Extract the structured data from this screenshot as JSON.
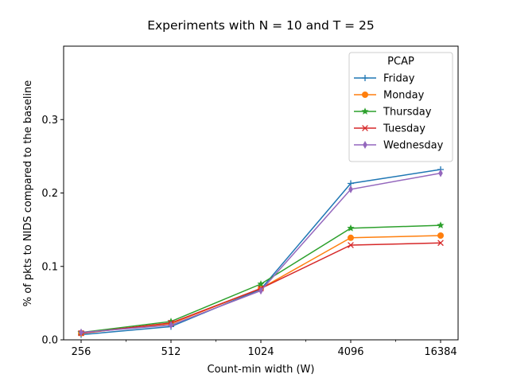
{
  "chart_data": {
    "type": "line",
    "title": "Experiments with N = 10 and T = 25",
    "xlabel": "Count-min width (W)",
    "ylabel": "% of pkts to NIDS compared to the baseline",
    "categories": [
      "256",
      "512",
      "1024",
      "4096",
      "16384"
    ],
    "x_scale": "log2",
    "ylim": [
      0,
      0.4
    ],
    "y_ticks": [
      "0.0",
      "0.1",
      "0.2",
      "0.3"
    ],
    "grid": false,
    "legend": {
      "title": "PCAP",
      "placement": "top-right"
    },
    "series": [
      {
        "name": "Friday",
        "color": "#1f77b4",
        "marker": "plus",
        "values": [
          0.007,
          0.018,
          0.069,
          0.213,
          0.232
        ]
      },
      {
        "name": "Monday",
        "color": "#ff7f0e",
        "marker": "circle",
        "values": [
          0.009,
          0.022,
          0.07,
          0.139,
          0.142
        ]
      },
      {
        "name": "Thursday",
        "color": "#2ca02c",
        "marker": "star",
        "values": [
          0.01,
          0.025,
          0.076,
          0.152,
          0.156
        ]
      },
      {
        "name": "Tuesday",
        "color": "#d62728",
        "marker": "x",
        "values": [
          0.009,
          0.023,
          0.07,
          0.129,
          0.132
        ]
      },
      {
        "name": "Wednesday",
        "color": "#9467bd",
        "marker": "diamond",
        "values": [
          0.01,
          0.02,
          0.067,
          0.205,
          0.227
        ]
      }
    ]
  }
}
